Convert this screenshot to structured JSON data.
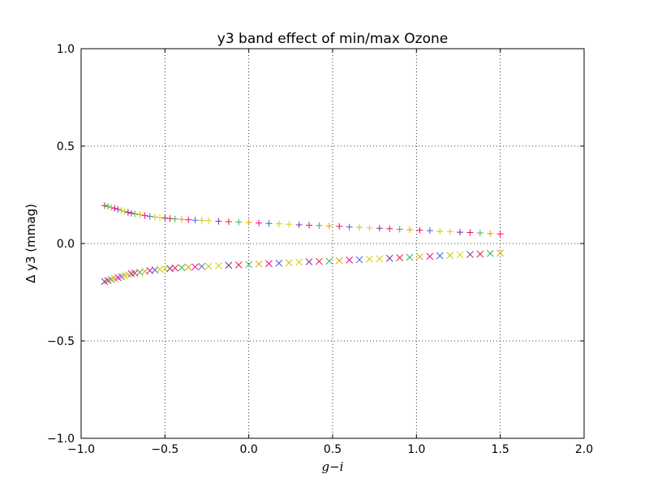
{
  "chart_data": {
    "type": "scatter",
    "title": "y3 band effect of min/max Ozone",
    "xlabel": "g−i",
    "ylabel": "Δ y3 (mmag)",
    "xlim": [
      -1.0,
      2.0
    ],
    "ylim": [
      -1.0,
      1.0
    ],
    "xticks": [
      -1.0,
      -0.5,
      0.0,
      0.5,
      1.0,
      1.5,
      2.0
    ],
    "yticks": [
      -1.0,
      -0.5,
      0.0,
      0.5,
      1.0
    ],
    "xtick_labels": [
      "−1.0",
      "−0.5",
      "0.0",
      "0.5",
      "1.0",
      "1.5",
      "2.0"
    ],
    "ytick_labels": [
      "−1.0",
      "−0.5",
      "0.0",
      "0.5",
      "1.0"
    ],
    "grid": true,
    "series": [
      {
        "marker": "plus",
        "points": [
          [
            -0.86,
            0.195
          ],
          [
            -0.84,
            0.19
          ],
          [
            -0.82,
            0.185
          ],
          [
            -0.8,
            0.18
          ],
          [
            -0.78,
            0.175
          ],
          [
            -0.76,
            0.17
          ],
          [
            -0.74,
            0.165
          ],
          [
            -0.72,
            0.16
          ],
          [
            -0.7,
            0.155
          ],
          [
            -0.68,
            0.152
          ],
          [
            -0.65,
            0.148
          ],
          [
            -0.62,
            0.143
          ],
          [
            -0.59,
            0.139
          ],
          [
            -0.56,
            0.136
          ],
          [
            -0.53,
            0.133
          ],
          [
            -0.5,
            0.13
          ],
          [
            -0.47,
            0.128
          ],
          [
            -0.44,
            0.126
          ],
          [
            -0.4,
            0.124
          ],
          [
            -0.36,
            0.122
          ],
          [
            -0.32,
            0.12
          ],
          [
            -0.28,
            0.118
          ],
          [
            -0.24,
            0.117
          ],
          [
            -0.18,
            0.114
          ],
          [
            -0.12,
            0.112
          ],
          [
            -0.06,
            0.11
          ],
          [
            0.0,
            0.108
          ],
          [
            0.06,
            0.105
          ],
          [
            0.12,
            0.103
          ],
          [
            0.18,
            0.101
          ],
          [
            0.24,
            0.099
          ],
          [
            0.3,
            0.096
          ],
          [
            0.36,
            0.094
          ],
          [
            0.42,
            0.092
          ],
          [
            0.48,
            0.09
          ],
          [
            0.54,
            0.088
          ],
          [
            0.6,
            0.085
          ],
          [
            0.66,
            0.083
          ],
          [
            0.72,
            0.08
          ],
          [
            0.78,
            0.078
          ],
          [
            0.84,
            0.076
          ],
          [
            0.9,
            0.073
          ],
          [
            0.96,
            0.071
          ],
          [
            1.02,
            0.068
          ],
          [
            1.08,
            0.066
          ],
          [
            1.14,
            0.063
          ],
          [
            1.2,
            0.061
          ],
          [
            1.26,
            0.058
          ],
          [
            1.32,
            0.056
          ],
          [
            1.38,
            0.054
          ],
          [
            1.44,
            0.051
          ],
          [
            1.5,
            0.049
          ]
        ]
      },
      {
        "marker": "x",
        "points": [
          [
            -0.86,
            -0.195
          ],
          [
            -0.84,
            -0.19
          ],
          [
            -0.82,
            -0.185
          ],
          [
            -0.8,
            -0.18
          ],
          [
            -0.78,
            -0.175
          ],
          [
            -0.76,
            -0.17
          ],
          [
            -0.74,
            -0.165
          ],
          [
            -0.72,
            -0.16
          ],
          [
            -0.7,
            -0.155
          ],
          [
            -0.68,
            -0.152
          ],
          [
            -0.65,
            -0.148
          ],
          [
            -0.62,
            -0.143
          ],
          [
            -0.59,
            -0.139
          ],
          [
            -0.56,
            -0.136
          ],
          [
            -0.53,
            -0.133
          ],
          [
            -0.5,
            -0.13
          ],
          [
            -0.47,
            -0.128
          ],
          [
            -0.44,
            -0.126
          ],
          [
            -0.4,
            -0.124
          ],
          [
            -0.36,
            -0.122
          ],
          [
            -0.32,
            -0.12
          ],
          [
            -0.28,
            -0.118
          ],
          [
            -0.24,
            -0.117
          ],
          [
            -0.18,
            -0.114
          ],
          [
            -0.12,
            -0.112
          ],
          [
            -0.06,
            -0.11
          ],
          [
            0.0,
            -0.108
          ],
          [
            0.06,
            -0.105
          ],
          [
            0.12,
            -0.103
          ],
          [
            0.18,
            -0.101
          ],
          [
            0.24,
            -0.099
          ],
          [
            0.3,
            -0.096
          ],
          [
            0.36,
            -0.094
          ],
          [
            0.42,
            -0.092
          ],
          [
            0.48,
            -0.09
          ],
          [
            0.54,
            -0.088
          ],
          [
            0.6,
            -0.085
          ],
          [
            0.66,
            -0.083
          ],
          [
            0.72,
            -0.08
          ],
          [
            0.78,
            -0.078
          ],
          [
            0.84,
            -0.076
          ],
          [
            0.9,
            -0.073
          ],
          [
            0.96,
            -0.071
          ],
          [
            1.02,
            -0.068
          ],
          [
            1.08,
            -0.066
          ],
          [
            1.14,
            -0.063
          ],
          [
            1.2,
            -0.061
          ],
          [
            1.26,
            -0.058
          ],
          [
            1.32,
            -0.056
          ],
          [
            1.38,
            -0.054
          ],
          [
            1.44,
            -0.051
          ],
          [
            1.5,
            -0.049
          ]
        ]
      }
    ],
    "marker_colors": [
      "#e6194b",
      "#ff007f",
      "#d4d400",
      "#3cb44b",
      "#4363d8",
      "#7b2d8e",
      "#e6a000",
      "#c8c800"
    ]
  }
}
